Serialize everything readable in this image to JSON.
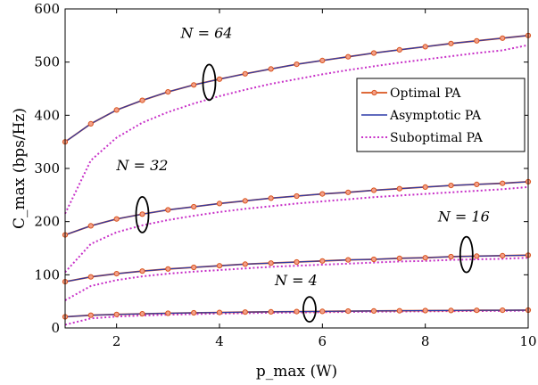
{
  "chart_data": {
    "type": "line",
    "xlabel": "p_max (W)",
    "ylabel": "C_max (bps/Hz)",
    "xlim": [
      1,
      10
    ],
    "ylim": [
      0,
      600
    ],
    "xticks": [
      2,
      4,
      6,
      8,
      10
    ],
    "yticks": [
      0,
      100,
      200,
      300,
      400,
      500,
      600
    ],
    "grid": false,
    "legend_position": "right",
    "legend": [
      "Optimal PA",
      "Asymptotic PA",
      "Suboptimal PA"
    ],
    "colors": {
      "optimal": "#d9541e",
      "asymptotic": "#2b3aa8",
      "suboptimal": "#c832c8"
    },
    "x": [
      1,
      1.5,
      2,
      2.5,
      3,
      3.5,
      4,
      4.5,
      5,
      5.5,
      6,
      6.5,
      7,
      7.5,
      8,
      8.5,
      9,
      9.5,
      10
    ],
    "annotations": [
      {
        "text": "N = 64",
        "x": 3.8,
        "y": 462
      },
      {
        "text": "N = 32",
        "x": 2.5,
        "y": 213
      },
      {
        "text": "N = 16",
        "x": 8.8,
        "y": 138
      },
      {
        "text": "N = 4",
        "x": 5.75,
        "y": 35
      }
    ],
    "groups": [
      {
        "N": 64,
        "optimal": [
          350,
          384,
          410,
          428,
          444,
          457,
          468,
          478,
          487,
          496,
          503,
          510,
          517,
          523,
          529,
          535,
          540,
          545,
          550
        ],
        "suboptimal": [
          215,
          315,
          358,
          386,
          406,
          422,
          436,
          448,
          459,
          468,
          477,
          485,
          492,
          499,
          505,
          511,
          517,
          522,
          532
        ]
      },
      {
        "N": 32,
        "optimal": [
          175,
          192,
          205,
          214,
          222,
          228,
          234,
          239,
          244,
          248,
          252,
          255,
          259,
          262,
          265,
          268,
          270,
          272,
          275
        ],
        "suboptimal": [
          105,
          158,
          180,
          193,
          203,
          211,
          218,
          224,
          229,
          234,
          238,
          242,
          246,
          249,
          252,
          255,
          258,
          261,
          265
        ]
      },
      {
        "N": 16,
        "optimal": [
          87,
          96,
          102,
          107,
          111,
          114,
          117,
          120,
          122,
          124,
          126,
          128,
          129,
          131,
          132,
          134,
          135,
          136,
          137
        ],
        "suboptimal": [
          52,
          79,
          90,
          97,
          102,
          106,
          109,
          112,
          115,
          117,
          119,
          121,
          123,
          125,
          126,
          128,
          129,
          130,
          132
        ]
      },
      {
        "N": 4,
        "optimal": [
          21,
          24,
          25.5,
          26.7,
          27.7,
          28.5,
          29.2,
          29.8,
          30.3,
          30.8,
          31.2,
          31.6,
          32,
          32.3,
          32.6,
          32.9,
          33.2,
          33.4,
          33.6
        ],
        "suboptimal": [
          6,
          18,
          21.5,
          23.5,
          25,
          26.2,
          27.1,
          27.9,
          28.6,
          29.2,
          29.7,
          30.2,
          30.6,
          31,
          31.3,
          31.6,
          31.9,
          32.2,
          32.5
        ]
      }
    ]
  }
}
